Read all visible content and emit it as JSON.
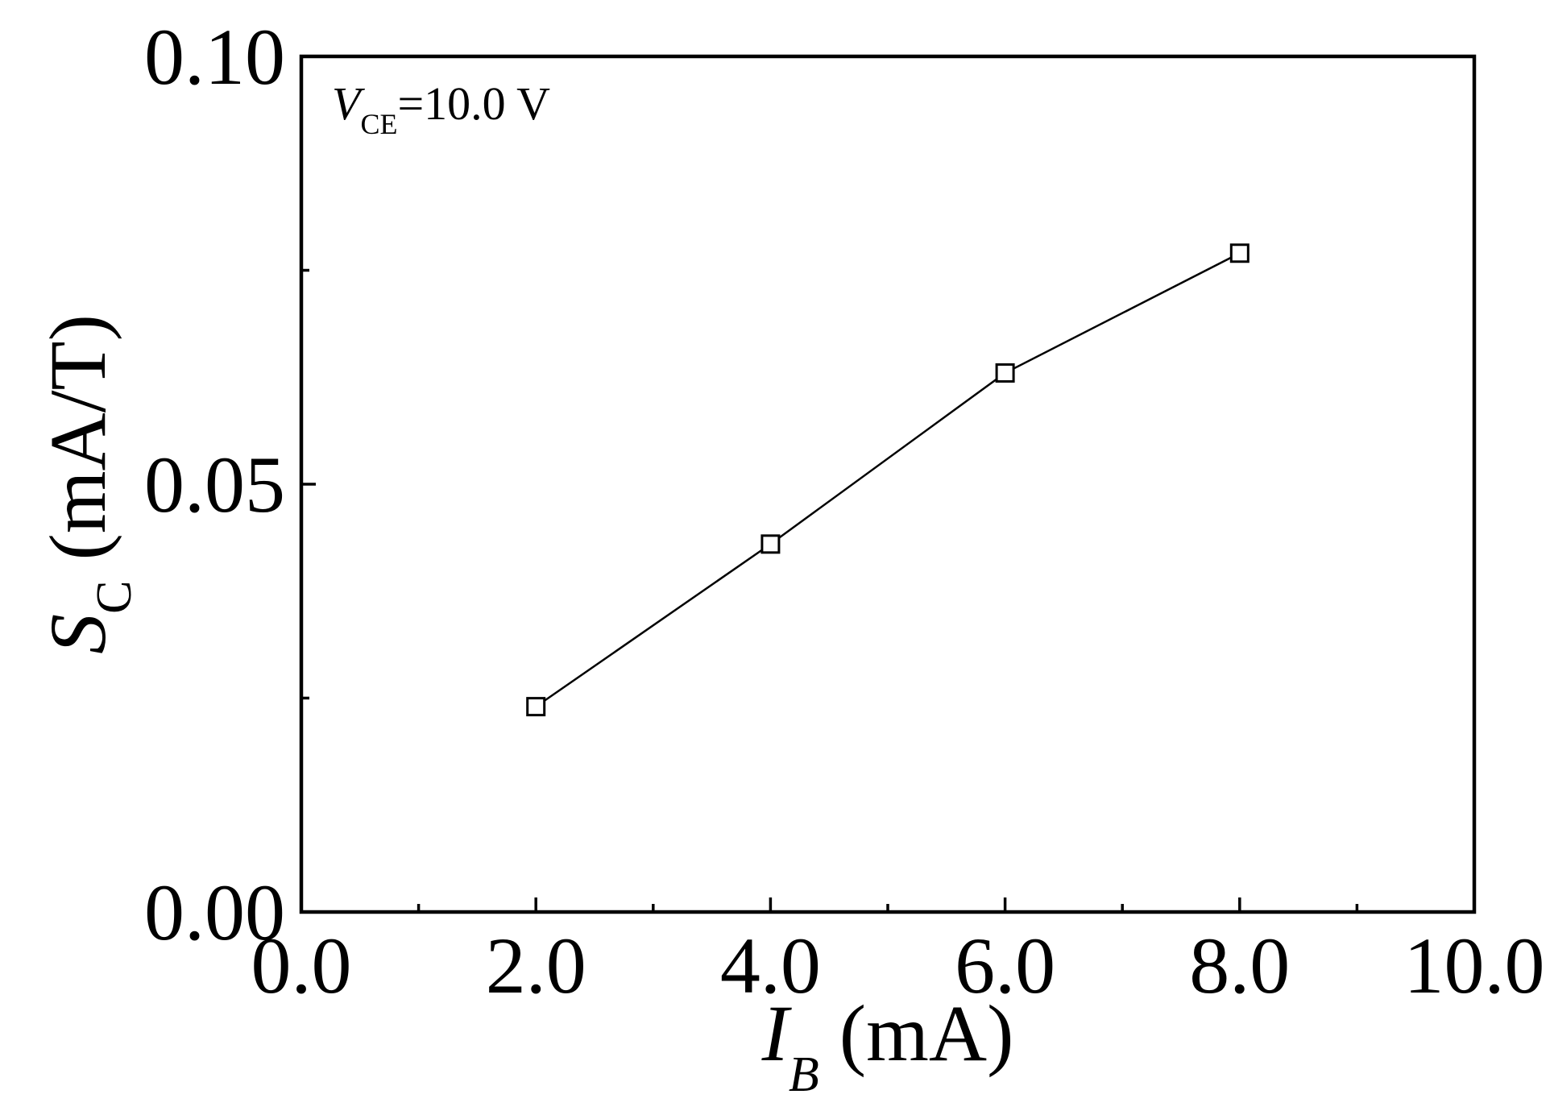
{
  "chart_data": {
    "type": "line",
    "title": "",
    "x": [
      2.0,
      4.0,
      6.0,
      8.0
    ],
    "series": [
      {
        "values": [
          0.024,
          0.043,
          0.063,
          0.077
        ],
        "marker": "open-square",
        "color": "#000000"
      }
    ],
    "xlim": [
      0.0,
      10.0
    ],
    "ylim": [
      0.0,
      0.1
    ],
    "xticks": [
      0.0,
      2.0,
      4.0,
      6.0,
      8.0,
      10.0
    ],
    "xtick_labels": [
      "0.0",
      "2.0",
      "4.0",
      "6.0",
      "8.0",
      "10.0"
    ],
    "xminor_ticks": [
      1.0,
      3.0,
      5.0,
      7.0,
      9.0
    ],
    "yticks": [
      0.0,
      0.05,
      0.1
    ],
    "ytick_labels": [
      "0.00",
      "0.05",
      "0.10"
    ],
    "yminor_ticks": [
      0.025,
      0.075
    ],
    "xlabel": {
      "symbol": "I",
      "subscript": "B",
      "unit": " (mA)"
    },
    "ylabel": {
      "symbol": "S",
      "subscript": "C",
      "unit": " (mA/T)"
    },
    "annotation": {
      "symbol": "V",
      "subscript": "CE",
      "text": "=10.0 V"
    },
    "grid": false,
    "legend": "none"
  }
}
